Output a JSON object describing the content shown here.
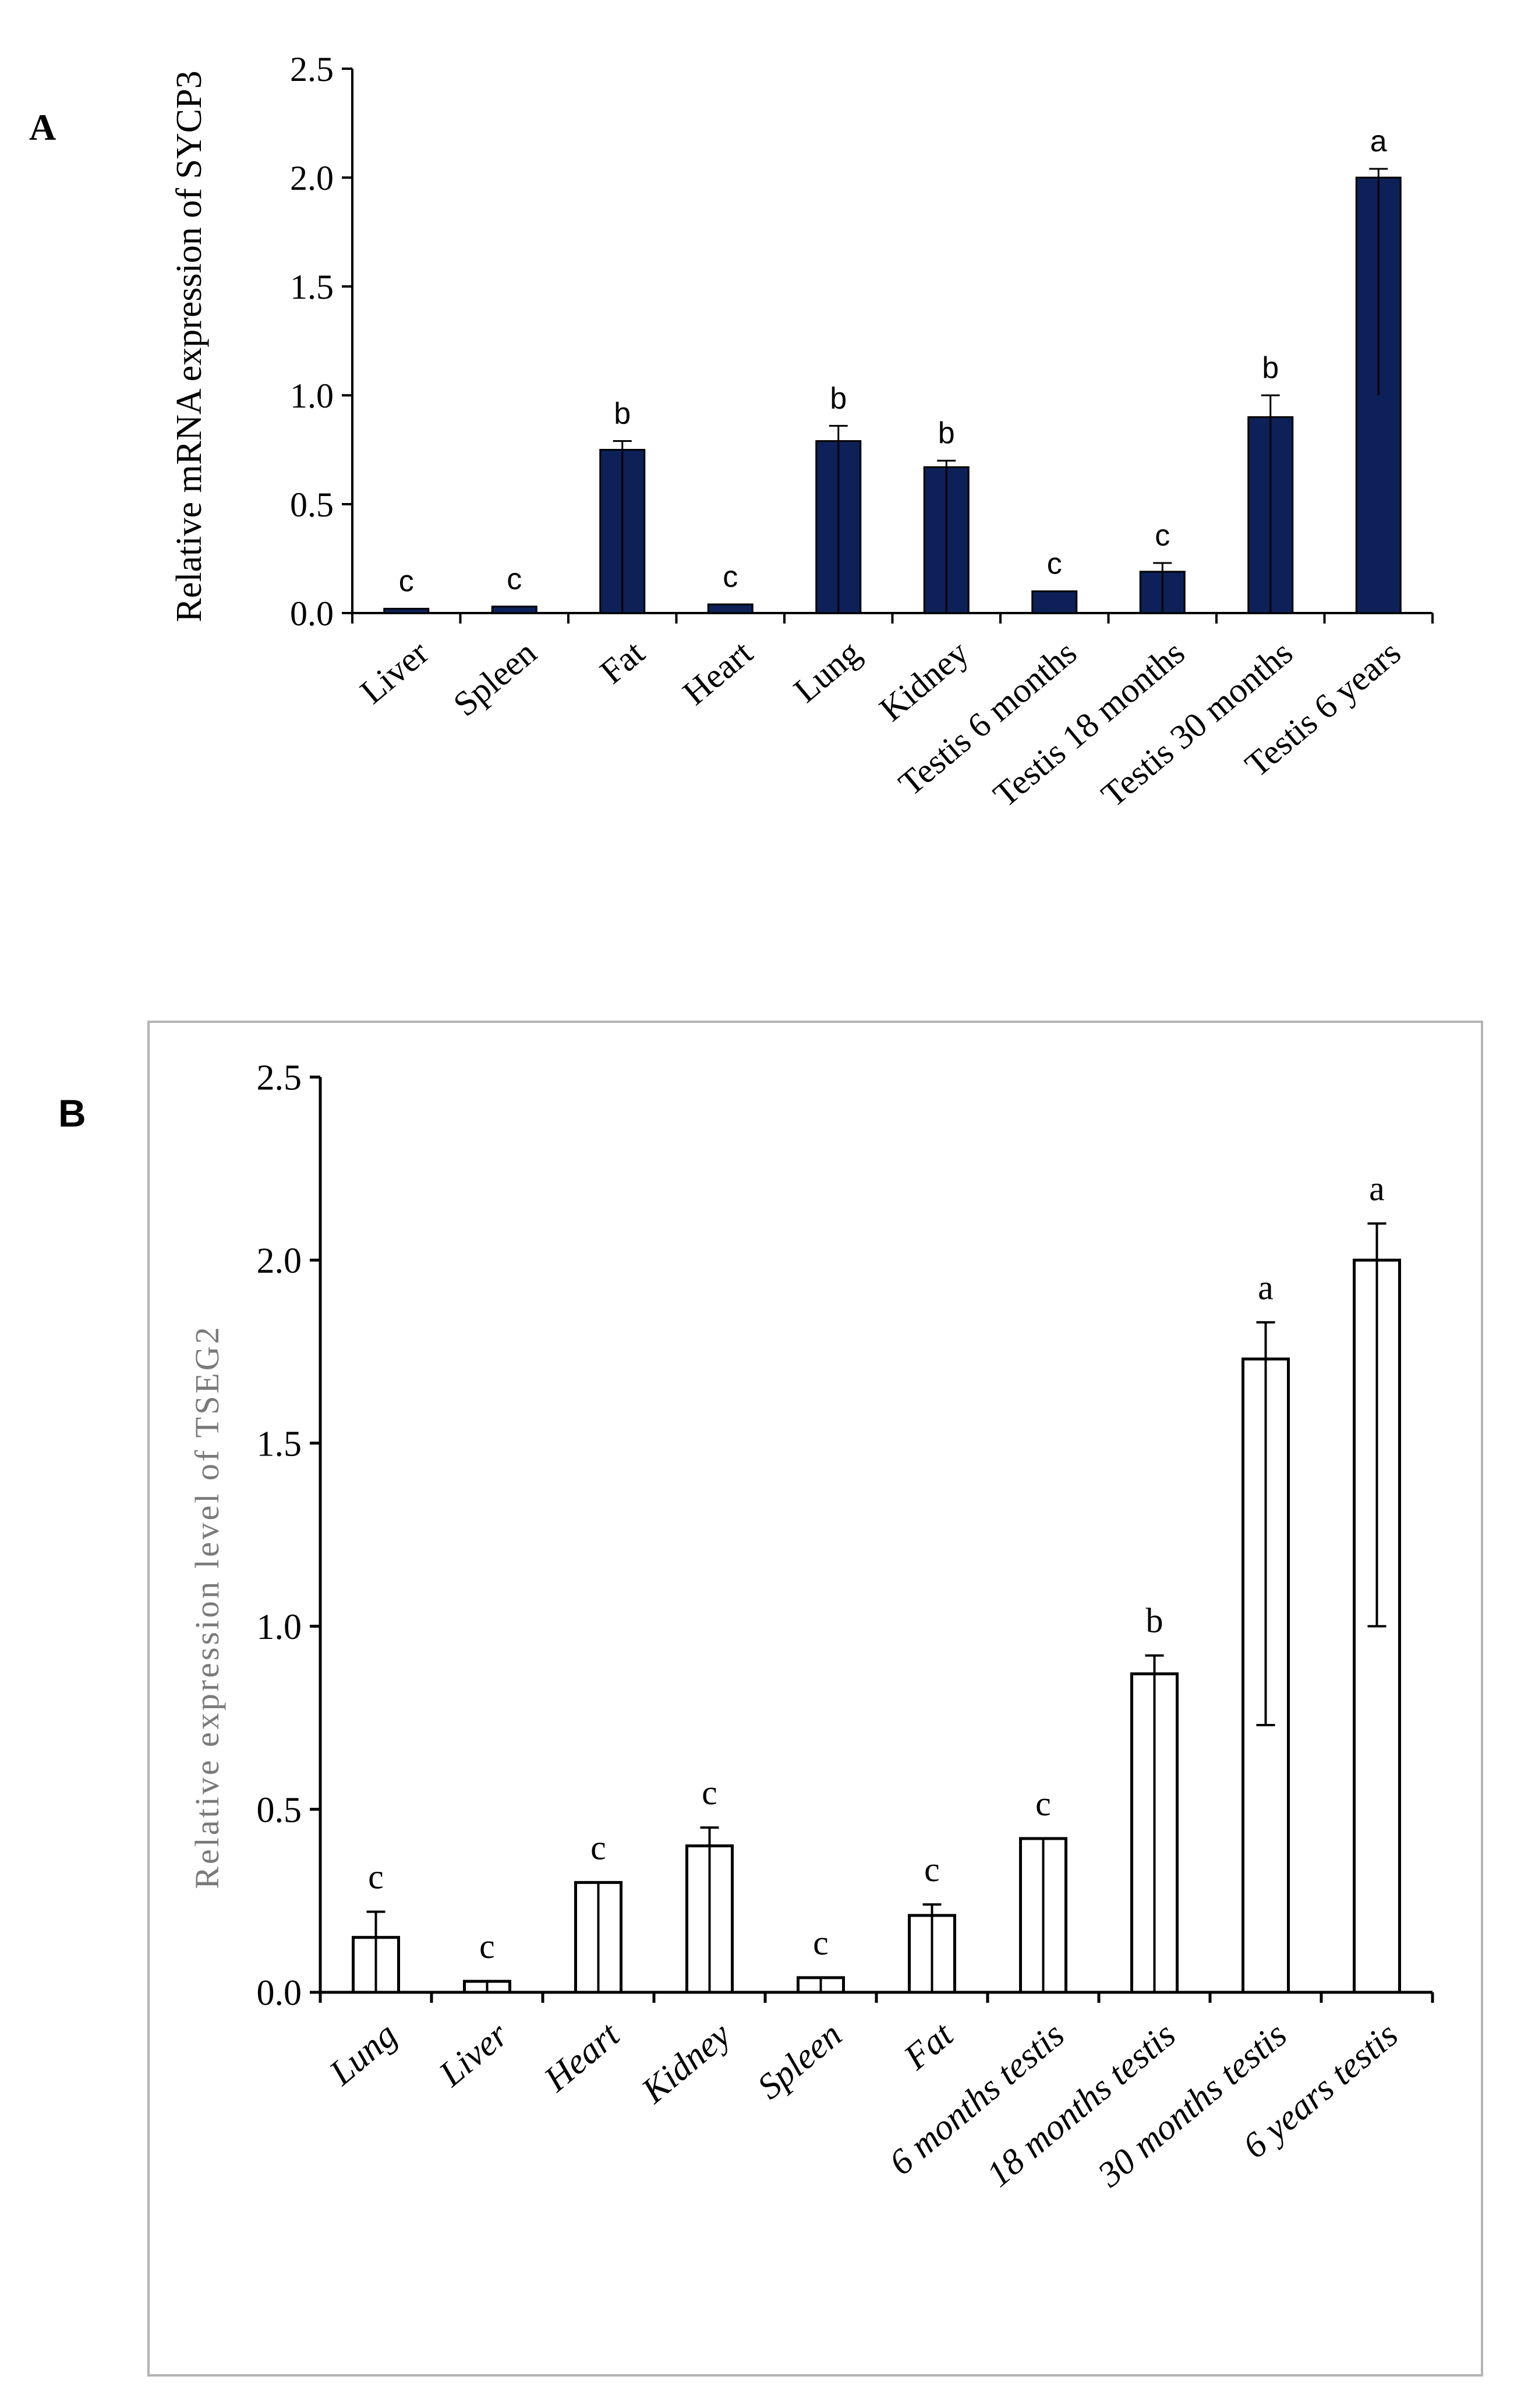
{
  "chart_data": [
    {
      "panel": "A",
      "type": "bar",
      "title": "",
      "xlabel": "",
      "ylabel": "Relative mRNA expression of SYCP3",
      "ylim": [
        0,
        2.5
      ],
      "yticks": [
        "0.0",
        "0.5",
        "1.0",
        "1.5",
        "2.0",
        "2.5"
      ],
      "categories": [
        "Liver",
        "Spleen",
        "Fat",
        "Heart",
        "Lung",
        "Kidney",
        "Testis 6 months",
        "Testis 18 months",
        "Testis 30 months",
        "Testis 6 years"
      ],
      "values": [
        0.02,
        0.03,
        0.75,
        0.04,
        0.79,
        0.67,
        0.1,
        0.19,
        0.9,
        2.0
      ],
      "err_upper": [
        0.0,
        0.0,
        0.04,
        0.0,
        0.07,
        0.03,
        0.0,
        0.04,
        0.1,
        0.04
      ],
      "err_lower": [
        0.0,
        0.0,
        0.75,
        0.0,
        0.79,
        0.67,
        0.0,
        0.19,
        0.9,
        1.0
      ],
      "letters": [
        "c",
        "c",
        "b",
        "c",
        "b",
        "b",
        "c",
        "c",
        "b",
        "a"
      ],
      "bar_color": "#0d2158",
      "grid": false
    },
    {
      "panel": "B",
      "type": "bar",
      "title": "",
      "xlabel": "",
      "ylabel": "Relative expression level of  TSEG2",
      "ylim": [
        0,
        2.5
      ],
      "yticks": [
        "0.0",
        "0.5",
        "1.0",
        "1.5",
        "2.0",
        "2.5"
      ],
      "categories": [
        "Lung",
        "Liver",
        "Heart",
        "Kidney",
        "Spleen",
        "Fat",
        "6 months testis",
        "18 months testis",
        "30 months testis",
        "6 years testis"
      ],
      "values": [
        0.15,
        0.03,
        0.3,
        0.4,
        0.04,
        0.21,
        0.42,
        0.87,
        1.73,
        2.0
      ],
      "err_upper": [
        0.07,
        0.0,
        0.0,
        0.05,
        0.0,
        0.03,
        0.0,
        0.05,
        0.1,
        0.1
      ],
      "err_lower": [
        0.15,
        0.03,
        0.3,
        0.4,
        0.04,
        0.21,
        0.42,
        0.87,
        1.0,
        1.0
      ],
      "letters": [
        "c",
        "c",
        "c",
        "c",
        "c",
        "c",
        "c",
        "b",
        "a",
        "a"
      ],
      "bar_color": "#ffffff",
      "grid": false
    }
  ],
  "panels": {
    "a_label": "A",
    "b_label": "B"
  }
}
